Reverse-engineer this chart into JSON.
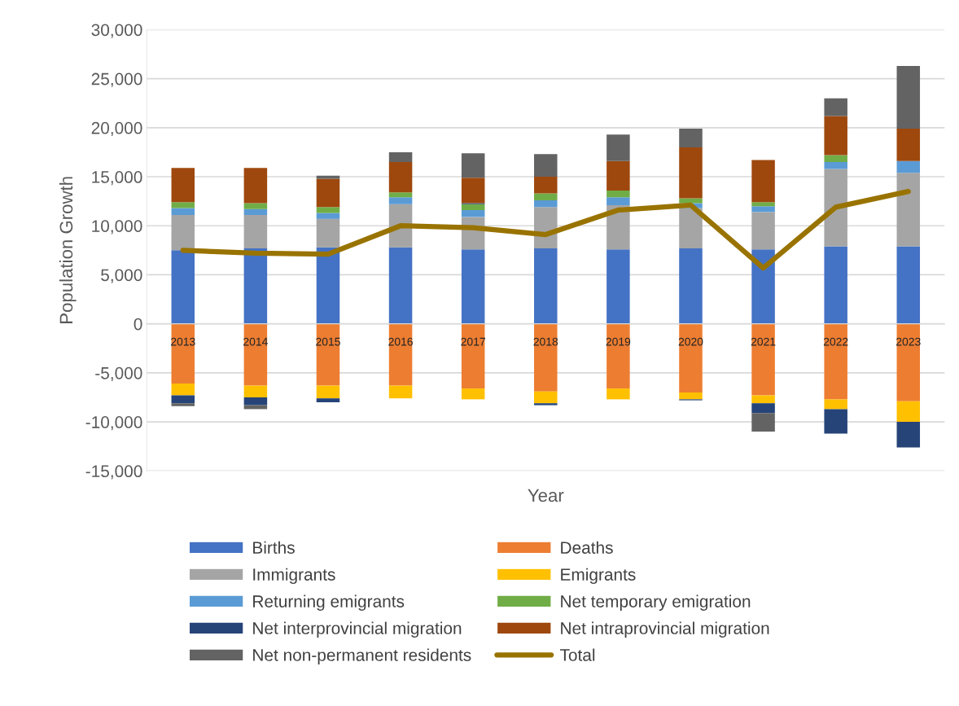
{
  "chart_data": {
    "type": "bar",
    "stacked": true,
    "xlabel": "Year",
    "ylabel": "Population Growth",
    "categories": [
      "2013",
      "2014",
      "2015",
      "2016",
      "2017",
      "2018",
      "2019",
      "2020",
      "2021",
      "2022",
      "2023"
    ],
    "series": [
      {
        "name": "Births",
        "color": "#4472c4",
        "values": [
          7500,
          7700,
          7800,
          7800,
          7600,
          7700,
          7600,
          7700,
          7600,
          7900,
          7900
        ]
      },
      {
        "name": "Deaths",
        "color": "#ed7d31",
        "values": [
          -6100,
          -6300,
          -6300,
          -6300,
          -6600,
          -6900,
          -6600,
          -7000,
          -7300,
          -7700,
          -7900
        ]
      },
      {
        "name": "Immigrants",
        "color": "#a5a5a5",
        "values": [
          3600,
          3400,
          2900,
          4400,
          3300,
          4200,
          4500,
          4100,
          3800,
          7900,
          7500
        ]
      },
      {
        "name": "Emigrants",
        "color": "#ffc000",
        "values": [
          -1200,
          -1200,
          -1300,
          -1300,
          -1100,
          -1200,
          -1100,
          -700,
          -800,
          -1000,
          -2100
        ]
      },
      {
        "name": "Returning emigrants",
        "color": "#5b9bd5",
        "values": [
          700,
          600,
          600,
          700,
          700,
          700,
          800,
          500,
          600,
          700,
          1200
        ]
      },
      {
        "name": "Net temporary emigration",
        "color": "#70ad47",
        "values": [
          600,
          600,
          600,
          500,
          600,
          700,
          700,
          500,
          400,
          700,
          null
        ]
      },
      {
        "name": "Net interprovincial migration",
        "color": "#264478",
        "values": [
          -800,
          -800,
          -400,
          null,
          100,
          -200,
          null,
          -100,
          -1000,
          -2500,
          -2600
        ]
      },
      {
        "name": "Net intraprovincial migration",
        "color": "#9e480e",
        "values": [
          3500,
          3600,
          2900,
          3100,
          2600,
          1700,
          3000,
          5200,
          4300,
          4000,
          3300
        ]
      },
      {
        "name": "Net non-permanent residents",
        "color": "#636363",
        "values": [
          -300,
          -400,
          300,
          1000,
          2500,
          2300,
          2700,
          1900,
          -1900,
          1800,
          6400
        ]
      },
      {
        "name": "Total",
        "type": "line",
        "color": "#997300",
        "values": [
          7500,
          7200,
          7100,
          10000,
          9800,
          9100,
          11600,
          12100,
          5700,
          11900,
          13500
        ]
      }
    ],
    "ylim": [
      -15000,
      30000
    ],
    "yticks": [
      {
        "value": -15000,
        "label": "-15,000"
      },
      {
        "value": -10000,
        "label": "-10,000"
      },
      {
        "value": -5000,
        "label": "-5,000"
      },
      {
        "value": 0,
        "label": "0"
      },
      {
        "value": 5000,
        "label": "5,000"
      },
      {
        "value": 10000,
        "label": "10,000"
      },
      {
        "value": 15000,
        "label": "15,000"
      },
      {
        "value": 20000,
        "label": "20,000"
      },
      {
        "value": 25000,
        "label": "25,000"
      },
      {
        "value": 30000,
        "label": "30,000"
      }
    ],
    "grid": "y",
    "legend": "bottom"
  }
}
